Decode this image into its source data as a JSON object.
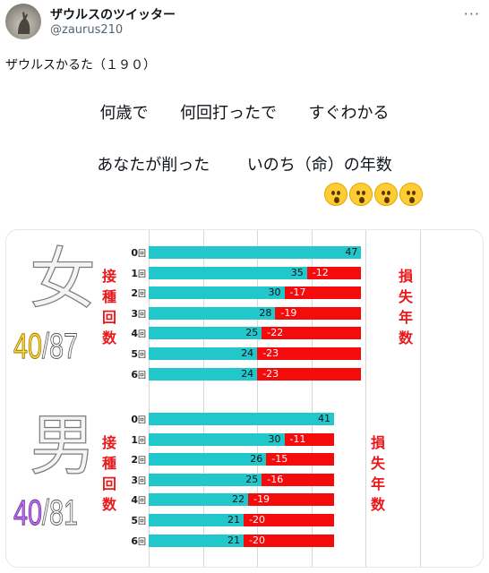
{
  "author": {
    "name": "ザウルスのツイッター",
    "handle": "@zaurus210",
    "avatar_icon": "kangaroo-avatar-icon"
  },
  "more_icon": "more-options-icon",
  "tweet": {
    "text": "ザウルスかるた（１９０）",
    "line1": [
      "何歳で",
      "何回打ったで",
      "すぐわかる"
    ],
    "line2": [
      "あなたが削った",
      "いのち（命）の年数"
    ],
    "emoji_count": 4
  },
  "chart_data": [
    {
      "type": "bar",
      "group": "女",
      "age_label_a": "40",
      "age_label_b": "/87",
      "left_vertical": "接種回数",
      "right_vertical": "損失年数",
      "categories": [
        "0回",
        "1回",
        "2回",
        "3回",
        "4回",
        "5回",
        "6回"
      ],
      "series": [
        {
          "name": "remaining",
          "values": [
            47,
            35,
            30,
            28,
            25,
            24,
            24
          ]
        },
        {
          "name": "loss",
          "values": [
            null,
            -12,
            -17,
            -19,
            -22,
            -23,
            -23
          ]
        }
      ],
      "xlim": [
        0,
        60
      ],
      "grid": true
    },
    {
      "type": "bar",
      "group": "男",
      "age_label_a": "40",
      "age_label_b": "/81",
      "left_vertical": "接種回数",
      "right_vertical": "損失年数",
      "categories": [
        "0回",
        "1回",
        "2回",
        "3回",
        "4回",
        "5回",
        "6回"
      ],
      "series": [
        {
          "name": "remaining",
          "values": [
            41,
            30,
            26,
            25,
            22,
            21,
            21
          ]
        },
        {
          "name": "loss",
          "values": [
            null,
            -11,
            -15,
            -16,
            -19,
            -20,
            -20
          ]
        }
      ],
      "xlim": [
        0,
        60
      ],
      "grid": true
    }
  ],
  "colors": {
    "remaining": "#22c7cc",
    "loss": "#f40c0c",
    "female_age": "#ffd23f",
    "male_age": "#c16ff5",
    "vertical_text": "#e8181b"
  }
}
